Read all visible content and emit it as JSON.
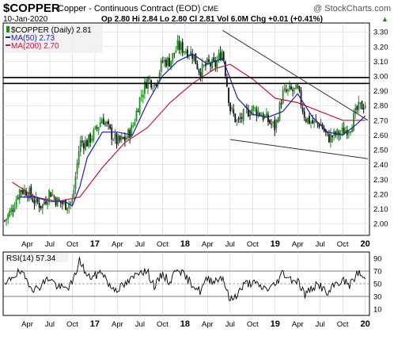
{
  "header": {
    "symbol": "$COPPER",
    "description": "Copper - Continuous Contract (EOD)",
    "exchange": "CME",
    "watermark": "@ StockCharts.com",
    "date": "10-Jan-2020",
    "quote": "Op 2.80  Hi 2.84  Lo 2.80  Cl 2.81  Vol 6.0M  Chg +0.01 (+0.41%)",
    "quote_arrow": "▲"
  },
  "colors": {
    "up_bar": "#1a8f1a",
    "down_bar": "#111111",
    "ma50": "#1f1fa8",
    "ma200": "#c0143c",
    "trendline": "#333333",
    "hline": "#000000",
    "rsi": "#000000",
    "grid": "#d3d3d3",
    "label_bg": "#f0f0f0"
  },
  "chart_data": [
    {
      "type": "line",
      "description_legend": [
        {
          "name": "$COPPER (Daily) 2.81",
          "marker": "candles"
        },
        {
          "name": "MA(50) 2.73",
          "color": "#1f1fa8"
        },
        {
          "name": "MA(200) 2.70",
          "color": "#c0143c"
        }
      ],
      "x_ticks": [
        "Apr",
        "Jul",
        "Oct",
        "17",
        "Apr",
        "Jul",
        "Oct",
        "18",
        "Apr",
        "Jul",
        "Oct",
        "19",
        "Apr",
        "Jul",
        "Oct",
        "20"
      ],
      "x_range": [
        "2016-01",
        "2020-01"
      ],
      "y_ticks": [
        2.0,
        2.1,
        2.2,
        2.3,
        2.4,
        2.5,
        2.6,
        2.7,
        2.8,
        2.9,
        3.0,
        3.1,
        3.2,
        3.3
      ],
      "ylim": [
        1.92,
        3.36
      ],
      "grid": true,
      "price_path": [
        [
          "2016-01",
          2.02
        ],
        [
          "2016-02",
          2.1
        ],
        [
          "2016-03",
          2.23
        ],
        [
          "2016-04",
          2.22
        ],
        [
          "2016-05",
          2.15
        ],
        [
          "2016-06",
          2.12
        ],
        [
          "2016-07",
          2.22
        ],
        [
          "2016-08",
          2.15
        ],
        [
          "2016-09",
          2.13
        ],
        [
          "2016-10",
          2.15
        ],
        [
          "2016-11",
          2.55
        ],
        [
          "2016-12",
          2.55
        ],
        [
          "2017-01",
          2.62
        ],
        [
          "2017-02",
          2.72
        ],
        [
          "2017-03",
          2.62
        ],
        [
          "2017-04",
          2.55
        ],
        [
          "2017-05",
          2.57
        ],
        [
          "2017-06",
          2.65
        ],
        [
          "2017-07",
          2.85
        ],
        [
          "2017-08",
          2.98
        ],
        [
          "2017-09",
          2.95
        ],
        [
          "2017-10",
          3.1
        ],
        [
          "2017-11",
          3.1
        ],
        [
          "2017-12",
          3.2
        ],
        [
          "2018-01",
          3.18
        ],
        [
          "2018-02",
          3.15
        ],
        [
          "2018-03",
          3.03
        ],
        [
          "2018-04",
          3.08
        ],
        [
          "2018-05",
          3.07
        ],
        [
          "2018-06",
          3.18
        ],
        [
          "2018-07",
          2.78
        ],
        [
          "2018-08",
          2.68
        ],
        [
          "2018-09",
          2.75
        ],
        [
          "2018-10",
          2.78
        ],
        [
          "2018-11",
          2.75
        ],
        [
          "2018-12",
          2.7
        ],
        [
          "2019-01",
          2.65
        ],
        [
          "2019-02",
          2.88
        ],
        [
          "2019-03",
          2.9
        ],
        [
          "2019-04",
          2.9
        ],
        [
          "2019-05",
          2.72
        ],
        [
          "2019-06",
          2.68
        ],
        [
          "2019-07",
          2.68
        ],
        [
          "2019-08",
          2.58
        ],
        [
          "2019-09",
          2.6
        ],
        [
          "2019-10",
          2.62
        ],
        [
          "2019-11",
          2.66
        ],
        [
          "2019-12",
          2.78
        ],
        [
          "2020-01",
          2.81
        ]
      ],
      "ma50_path": [
        [
          "2016-03",
          2.18
        ],
        [
          "2016-05",
          2.18
        ],
        [
          "2016-07",
          2.15
        ],
        [
          "2016-09",
          2.15
        ],
        [
          "2016-10",
          2.12
        ],
        [
          "2016-11",
          2.25
        ],
        [
          "2016-12",
          2.45
        ],
        [
          "2017-02",
          2.62
        ],
        [
          "2017-04",
          2.62
        ],
        [
          "2017-06",
          2.6
        ],
        [
          "2017-08",
          2.82
        ],
        [
          "2017-10",
          3.0
        ],
        [
          "2017-12",
          3.1
        ],
        [
          "2018-02",
          3.15
        ],
        [
          "2018-04",
          3.08
        ],
        [
          "2018-06",
          3.12
        ],
        [
          "2018-08",
          2.85
        ],
        [
          "2018-10",
          2.74
        ],
        [
          "2018-12",
          2.72
        ],
        [
          "2019-02",
          2.76
        ],
        [
          "2019-04",
          2.88
        ],
        [
          "2019-06",
          2.72
        ],
        [
          "2019-08",
          2.62
        ],
        [
          "2019-10",
          2.6
        ],
        [
          "2019-12",
          2.68
        ],
        [
          "2020-01",
          2.73
        ]
      ],
      "ma200_path": [
        [
          "2016-02",
          2.28
        ],
        [
          "2016-05",
          2.18
        ],
        [
          "2016-08",
          2.15
        ],
        [
          "2016-11",
          2.18
        ],
        [
          "2017-02",
          2.38
        ],
        [
          "2017-05",
          2.55
        ],
        [
          "2017-08",
          2.65
        ],
        [
          "2017-11",
          2.82
        ],
        [
          "2018-02",
          2.95
        ],
        [
          "2018-05",
          3.05
        ],
        [
          "2018-07",
          3.08
        ],
        [
          "2018-10",
          2.98
        ],
        [
          "2019-01",
          2.85
        ],
        [
          "2019-04",
          2.82
        ],
        [
          "2019-07",
          2.76
        ],
        [
          "2019-10",
          2.7
        ],
        [
          "2020-01",
          2.7
        ]
      ],
      "horizontal_lines": [
        2.95,
        2.99
      ],
      "trendlines": [
        {
          "from": [
            "2018-06",
            3.31
          ],
          "to": [
            "2020-01",
            2.7
          ]
        },
        {
          "from": [
            "2018-07",
            2.57
          ],
          "to": [
            "2020-01",
            2.44
          ]
        }
      ]
    },
    {
      "type": "line",
      "legend": "RSI(14) 57.34",
      "x_ticks": [
        "Apr",
        "Jul",
        "Oct",
        "17",
        "Apr",
        "Jul",
        "Oct",
        "18",
        "Apr",
        "Jul",
        "Oct",
        "19",
        "Apr",
        "Jul",
        "Oct",
        "20"
      ],
      "y_ticks": [
        10,
        30,
        50,
        70,
        90
      ],
      "ylim": [
        0,
        100
      ],
      "reference_lines": [
        30,
        50,
        70
      ],
      "rsi_path": [
        [
          "2016-01",
          45
        ],
        [
          "2016-02",
          62
        ],
        [
          "2016-03",
          68
        ],
        [
          "2016-04",
          55
        ],
        [
          "2016-05",
          40
        ],
        [
          "2016-06",
          50
        ],
        [
          "2016-07",
          60
        ],
        [
          "2016-08",
          45
        ],
        [
          "2016-09",
          42
        ],
        [
          "2016-10",
          50
        ],
        [
          "2016-11",
          88
        ],
        [
          "2016-12",
          60
        ],
        [
          "2017-01",
          62
        ],
        [
          "2017-02",
          70
        ],
        [
          "2017-03",
          45
        ],
        [
          "2017-04",
          42
        ],
        [
          "2017-05",
          48
        ],
        [
          "2017-06",
          58
        ],
        [
          "2017-07",
          72
        ],
        [
          "2017-08",
          68
        ],
        [
          "2017-09",
          45
        ],
        [
          "2017-10",
          66
        ],
        [
          "2017-11",
          52
        ],
        [
          "2017-12",
          78
        ],
        [
          "2018-01",
          60
        ],
        [
          "2018-02",
          50
        ],
        [
          "2018-03",
          38
        ],
        [
          "2018-04",
          58
        ],
        [
          "2018-05",
          55
        ],
        [
          "2018-06",
          62
        ],
        [
          "2018-07",
          22
        ],
        [
          "2018-08",
          35
        ],
        [
          "2018-09",
          50
        ],
        [
          "2018-10",
          52
        ],
        [
          "2018-11",
          45
        ],
        [
          "2018-12",
          42
        ],
        [
          "2019-01",
          48
        ],
        [
          "2019-02",
          68
        ],
        [
          "2019-03",
          58
        ],
        [
          "2019-04",
          55
        ],
        [
          "2019-05",
          32
        ],
        [
          "2019-06",
          45
        ],
        [
          "2019-07",
          48
        ],
        [
          "2019-08",
          32
        ],
        [
          "2019-09",
          50
        ],
        [
          "2019-10",
          55
        ],
        [
          "2019-11",
          48
        ],
        [
          "2019-12",
          68
        ],
        [
          "2020-01",
          57.34
        ]
      ]
    }
  ]
}
